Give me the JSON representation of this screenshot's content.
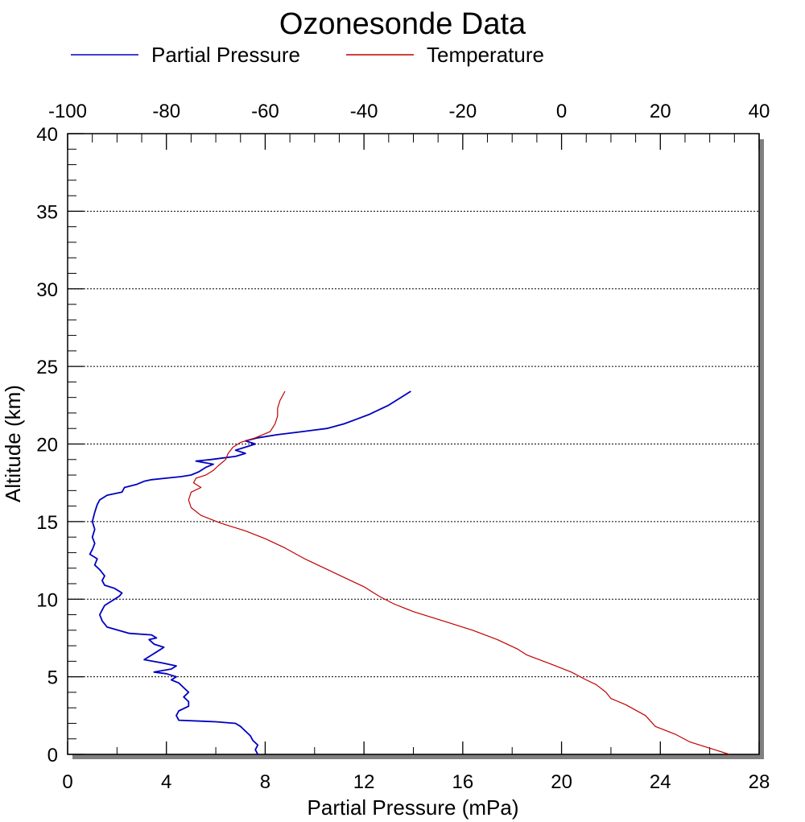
{
  "chart_data": {
    "type": "line",
    "title": "Ozonesonde Data",
    "legend_placement": "top",
    "grid": "horizontal dotted",
    "y_axis": {
      "label": "Altitude (km)",
      "range": [
        0,
        40
      ],
      "ticks": [
        0,
        5,
        10,
        15,
        20,
        25,
        30,
        35,
        40
      ],
      "tick_labels": [
        "0",
        "5",
        "10",
        "15",
        "20",
        "25",
        "30",
        "35",
        "40"
      ]
    },
    "x_axis_bottom": {
      "label": "Partial Pressure (mPa)",
      "range": [
        0,
        28
      ],
      "ticks": [
        0,
        4,
        8,
        12,
        16,
        20,
        24,
        28
      ],
      "tick_labels": [
        "0",
        "4",
        "8",
        "12",
        "16",
        "20",
        "24",
        "28"
      ]
    },
    "x_axis_top": {
      "label": "",
      "range": [
        -100,
        40
      ],
      "ticks": [
        -100,
        -80,
        -60,
        -40,
        -20,
        0,
        20,
        40
      ],
      "tick_labels": [
        "-100",
        "-80",
        "-60",
        "-40",
        "-20",
        "0",
        "20",
        "40"
      ]
    },
    "series": [
      {
        "name": "Partial Pressure",
        "color": "#0000c0",
        "axis": "bottom",
        "points": [
          [
            7.7,
            0
          ],
          [
            7.6,
            0.3
          ],
          [
            7.7,
            0.6
          ],
          [
            7.5,
            0.9
          ],
          [
            7.4,
            1.2
          ],
          [
            7.2,
            1.5
          ],
          [
            7.0,
            1.8
          ],
          [
            6.8,
            2.0
          ],
          [
            6.0,
            2.1
          ],
          [
            4.5,
            2.2
          ],
          [
            4.4,
            2.5
          ],
          [
            4.5,
            2.8
          ],
          [
            4.9,
            3.1
          ],
          [
            4.9,
            3.4
          ],
          [
            4.7,
            3.7
          ],
          [
            4.9,
            4.0
          ],
          [
            4.7,
            4.3
          ],
          [
            4.5,
            4.6
          ],
          [
            4.2,
            4.8
          ],
          [
            4.4,
            5.0
          ],
          [
            4.0,
            5.2
          ],
          [
            3.5,
            5.3
          ],
          [
            4.2,
            5.5
          ],
          [
            4.4,
            5.7
          ],
          [
            3.8,
            5.9
          ],
          [
            3.1,
            6.1
          ],
          [
            3.4,
            6.4
          ],
          [
            3.6,
            6.6
          ],
          [
            3.9,
            6.9
          ],
          [
            3.5,
            7.1
          ],
          [
            3.3,
            7.4
          ],
          [
            3.6,
            7.5
          ],
          [
            3.4,
            7.7
          ],
          [
            2.5,
            7.8
          ],
          [
            1.6,
            8.2
          ],
          [
            1.4,
            8.6
          ],
          [
            1.3,
            9.0
          ],
          [
            1.4,
            9.3
          ],
          [
            1.5,
            9.6
          ],
          [
            1.8,
            9.9
          ],
          [
            2.1,
            10.2
          ],
          [
            2.2,
            10.4
          ],
          [
            1.9,
            10.7
          ],
          [
            1.5,
            10.9
          ],
          [
            1.4,
            11.2
          ],
          [
            1.5,
            11.5
          ],
          [
            1.3,
            11.9
          ],
          [
            1.1,
            12.2
          ],
          [
            1.2,
            12.6
          ],
          [
            0.9,
            12.9
          ],
          [
            1.0,
            13.2
          ],
          [
            1.1,
            13.6
          ],
          [
            1.0,
            14.0
          ],
          [
            1.1,
            14.5
          ],
          [
            1.0,
            15.0
          ],
          [
            1.1,
            15.6
          ],
          [
            1.2,
            16.1
          ],
          [
            1.3,
            16.4
          ],
          [
            1.6,
            16.7
          ],
          [
            2.2,
            16.9
          ],
          [
            2.3,
            17.2
          ],
          [
            2.8,
            17.4
          ],
          [
            3.1,
            17.6
          ],
          [
            3.4,
            17.7
          ],
          [
            4.0,
            17.8
          ],
          [
            4.6,
            17.9
          ],
          [
            5.0,
            18.0
          ],
          [
            5.3,
            18.2
          ],
          [
            5.6,
            18.5
          ],
          [
            5.9,
            18.7
          ],
          [
            5.2,
            18.9
          ],
          [
            5.8,
            19.0
          ],
          [
            6.3,
            19.1
          ],
          [
            6.8,
            19.2
          ],
          [
            7.2,
            19.4
          ],
          [
            6.8,
            19.6
          ],
          [
            7.2,
            19.8
          ],
          [
            7.6,
            20.0
          ],
          [
            7.2,
            20.2
          ],
          [
            7.7,
            20.4
          ],
          [
            8.5,
            20.6
          ],
          [
            9.5,
            20.8
          ],
          [
            10.5,
            21.0
          ],
          [
            11.2,
            21.3
          ],
          [
            11.7,
            21.6
          ],
          [
            12.2,
            21.9
          ],
          [
            12.6,
            22.2
          ],
          [
            13.0,
            22.5
          ],
          [
            13.3,
            22.8
          ],
          [
            13.6,
            23.1
          ],
          [
            13.9,
            23.4
          ]
        ]
      },
      {
        "name": "Temperature",
        "color": "#c00000",
        "axis": "top",
        "points": [
          [
            34.0,
            0
          ],
          [
            30.0,
            0.4
          ],
          [
            26.0,
            0.8
          ],
          [
            23.0,
            1.3
          ],
          [
            19.0,
            1.8
          ],
          [
            17.0,
            2.5
          ],
          [
            13.0,
            3.2
          ],
          [
            10.0,
            3.6
          ],
          [
            9.0,
            4.0
          ],
          [
            7.0,
            4.5
          ],
          [
            5.0,
            4.8
          ],
          [
            2.0,
            5.3
          ],
          [
            -2.0,
            5.8
          ],
          [
            -7.0,
            6.4
          ],
          [
            -9.0,
            6.8
          ],
          [
            -13.0,
            7.4
          ],
          [
            -18.0,
            8.0
          ],
          [
            -24.0,
            8.6
          ],
          [
            -30.0,
            9.2
          ],
          [
            -34.0,
            9.7
          ],
          [
            -37.0,
            10.2
          ],
          [
            -40.0,
            10.8
          ],
          [
            -44.0,
            11.4
          ],
          [
            -48.0,
            12.0
          ],
          [
            -52.0,
            12.6
          ],
          [
            -56.0,
            13.3
          ],
          [
            -60.0,
            13.9
          ],
          [
            -64.0,
            14.4
          ],
          [
            -69.0,
            14.9
          ],
          [
            -73.0,
            15.4
          ],
          [
            -75.0,
            15.9
          ],
          [
            -75.5,
            16.4
          ],
          [
            -75.0,
            16.9
          ],
          [
            -73.0,
            17.2
          ],
          [
            -74.5,
            17.5
          ],
          [
            -74.0,
            17.8
          ],
          [
            -72.0,
            18.0
          ],
          [
            -70.5,
            18.3
          ],
          [
            -69.5,
            18.6
          ],
          [
            -68.0,
            19.0
          ],
          [
            -67.5,
            19.4
          ],
          [
            -66.5,
            19.8
          ],
          [
            -65.0,
            20.1
          ],
          [
            -62.0,
            20.4
          ],
          [
            -59.0,
            20.8
          ],
          [
            -58.0,
            21.3
          ],
          [
            -57.5,
            21.8
          ],
          [
            -57.5,
            22.3
          ],
          [
            -57.0,
            22.8
          ],
          [
            -56.0,
            23.4
          ]
        ]
      }
    ]
  }
}
